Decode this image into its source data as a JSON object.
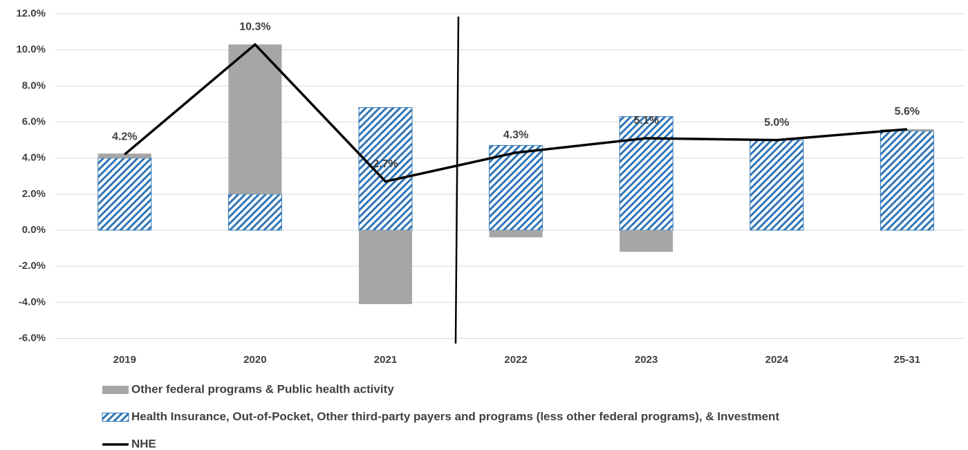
{
  "chart_data": {
    "type": "bar",
    "stacked": true,
    "categories": [
      "2019",
      "2020",
      "2021",
      "2022",
      "2023",
      "2024",
      "25-31"
    ],
    "series": [
      {
        "name": "Health Insurance, Out-of-Pocket, Other third-party payers and programs (less other federal programs), & Investment",
        "color": "#2e75b6",
        "pattern": "hatch",
        "type": "bar",
        "values": [
          4.0,
          2.0,
          6.8,
          4.7,
          6.3,
          5.0,
          5.5
        ]
      },
      {
        "name": "Other federal programs & Public health activity",
        "color": "#a6a6a6",
        "type": "bar",
        "values": [
          0.25,
          8.3,
          -4.1,
          -0.4,
          -1.2,
          0,
          0.1
        ]
      },
      {
        "name": "NHE",
        "color": "#000000",
        "type": "line",
        "values": [
          4.2,
          10.3,
          2.7,
          4.3,
          5.1,
          5.0,
          5.6
        ],
        "value_labels": [
          "4.2%",
          "10.3%",
          "2.7%",
          "4.3%",
          "5.1%",
          "5.0%",
          "5.6%"
        ]
      }
    ],
    "legend_order": [
      1,
      0,
      2
    ],
    "ylim": [
      -6,
      12
    ],
    "yticks": [
      {
        "value": -6,
        "label": "-6.0%"
      },
      {
        "value": -4,
        "label": "-4.0%"
      },
      {
        "value": -2,
        "label": "-2.0%"
      },
      {
        "value": 0,
        "label": "0.0%"
      },
      {
        "value": 2,
        "label": "2.0%"
      },
      {
        "value": 4,
        "label": "4.0%"
      },
      {
        "value": 6,
        "label": "6.0%"
      },
      {
        "value": 8,
        "label": "8.0%"
      },
      {
        "value": 10,
        "label": "10.0%"
      },
      {
        "value": 12,
        "label": "12.0%"
      }
    ],
    "grid": true
  }
}
